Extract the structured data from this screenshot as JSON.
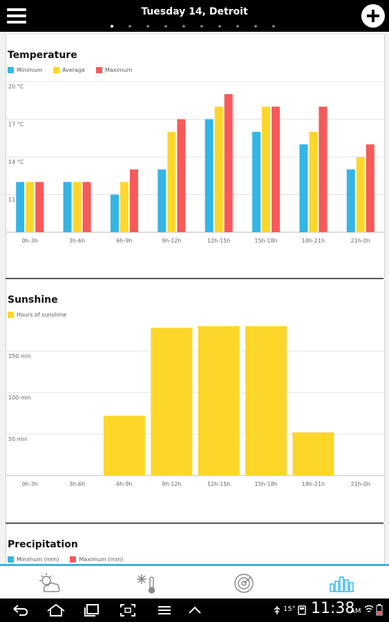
{
  "header": {
    "title": "Tuesday 14, Detroit",
    "page_count": 10,
    "active_page": 0
  },
  "colors": {
    "minimum": "#33b5e5",
    "average": "#fcd72a",
    "maximum": "#f65a5a",
    "sunshine": "#fcd72a",
    "accent": "#33b5e5"
  },
  "temperature": {
    "title": "Temperature",
    "legend": [
      "Minimum",
      "Average",
      "Maximum"
    ]
  },
  "sunshine": {
    "title": "Sunshine",
    "legend": [
      "Hours of sunshine"
    ]
  },
  "precipitation": {
    "title": "Precipitation",
    "legend": [
      "Minimum (mm)",
      "Maximum (mm)"
    ]
  },
  "chart_data": [
    {
      "type": "bar",
      "title": "Temperature",
      "categories": [
        "0h-3h",
        "3h-6h",
        "6h-9h",
        "9h-12h",
        "12h-15h",
        "15h-18h",
        "18h-21h",
        "21h-0h"
      ],
      "series": [
        {
          "name": "Minimum",
          "values": [
            12,
            12,
            11,
            13,
            17,
            16,
            15,
            13
          ]
        },
        {
          "name": "Average",
          "values": [
            12,
            12,
            12,
            16,
            18,
            18,
            16,
            14
          ]
        },
        {
          "name": "Maximum",
          "values": [
            12,
            12,
            13,
            17,
            19,
            18,
            18,
            15
          ]
        }
      ],
      "yticks": [
        "11 °C",
        "14 °C",
        "17 °C",
        "20 °C"
      ],
      "ytick_values": [
        11,
        14,
        17,
        20
      ],
      "ylim": [
        8,
        20
      ],
      "grid": true
    },
    {
      "type": "bar",
      "title": "Sunshine",
      "categories": [
        "0h-3h",
        "3h-6h",
        "6h-9h",
        "9h-12h",
        "12h-15h",
        "15h-18h",
        "18h-21h",
        "21h-0h"
      ],
      "series": [
        {
          "name": "Hours of sunshine",
          "values": [
            0,
            0,
            72,
            178,
            180,
            180,
            52,
            0
          ]
        }
      ],
      "yticks": [
        "50 min",
        "100 min",
        "150 min"
      ],
      "ytick_values": [
        50,
        100,
        150
      ],
      "ylim": [
        0,
        180
      ],
      "grid": true
    }
  ],
  "nav": [
    {
      "icon": "weather-icon",
      "active": false
    },
    {
      "icon": "snow-thermometer-icon",
      "active": false
    },
    {
      "icon": "radar-icon",
      "active": false
    },
    {
      "icon": "bar-chart-icon",
      "active": true
    }
  ],
  "status": {
    "temperature": "15°",
    "time": "11:38",
    "ampm": "AM"
  }
}
